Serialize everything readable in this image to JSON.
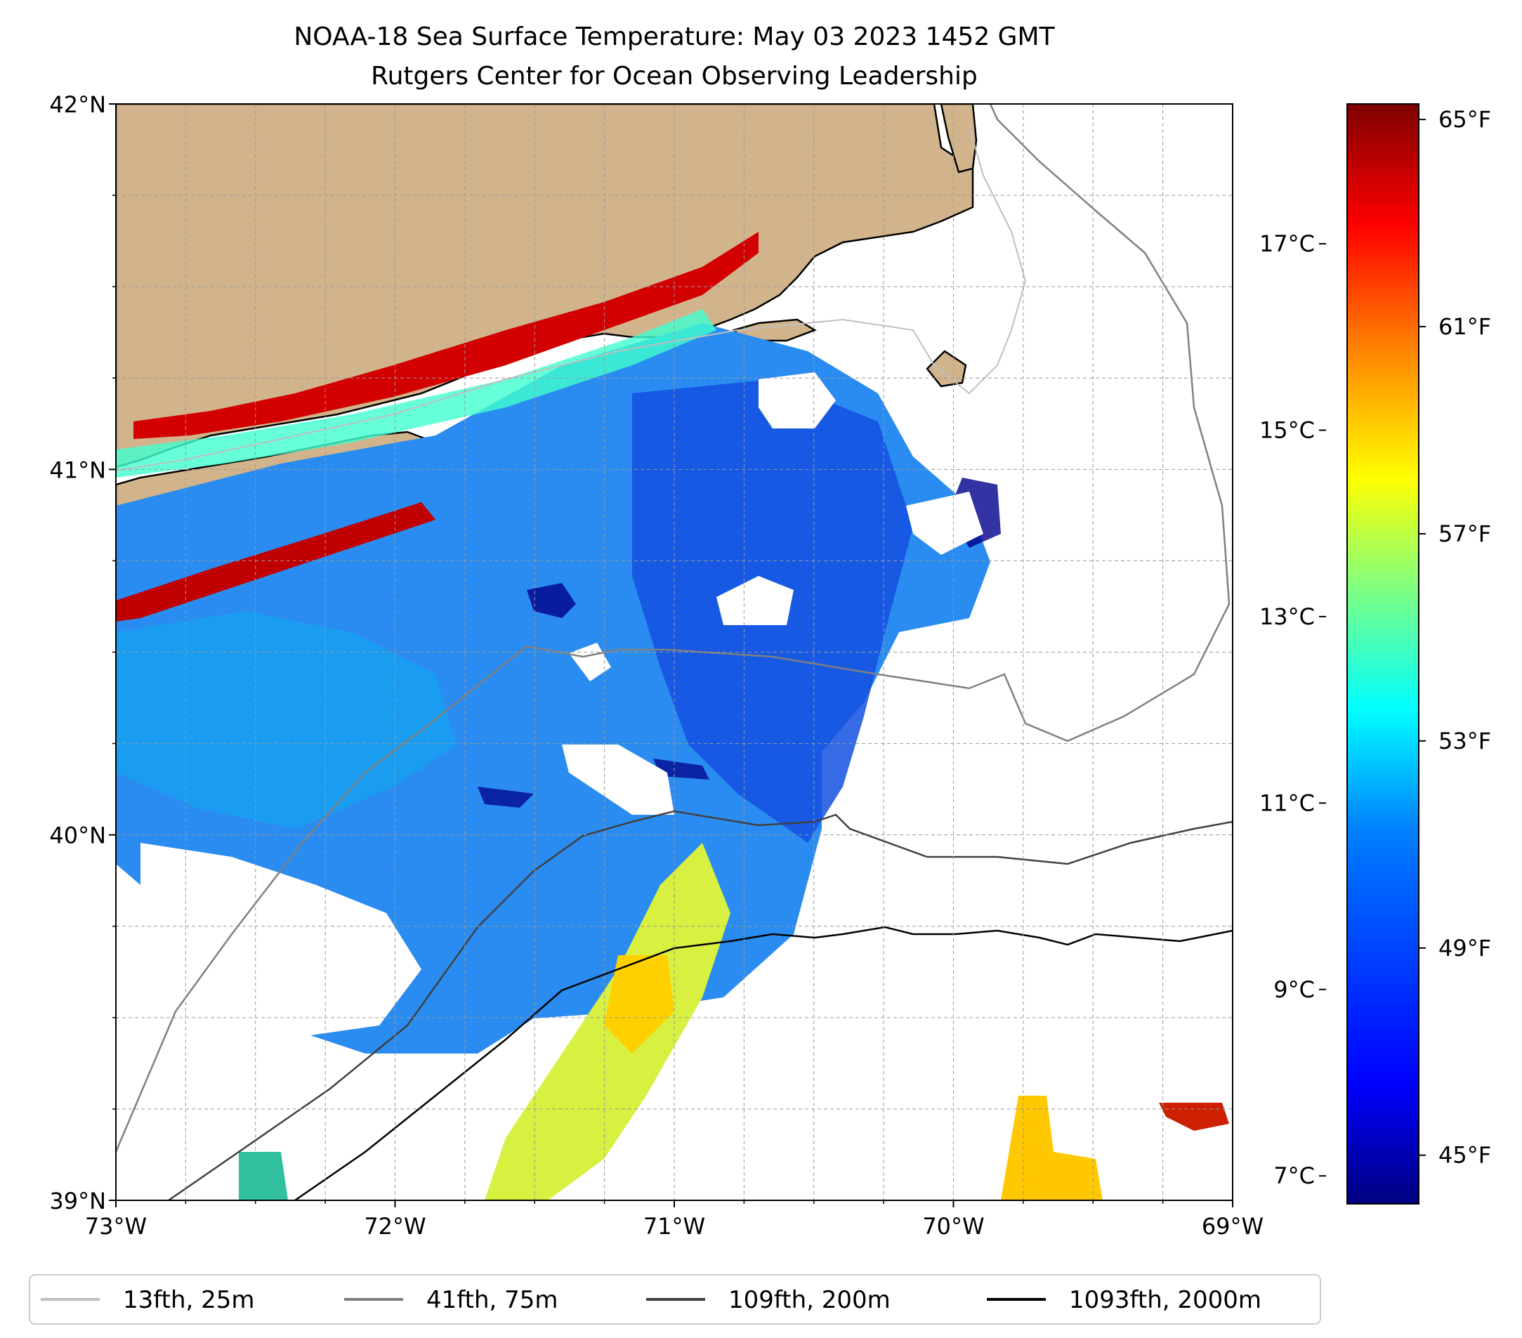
{
  "title": {
    "line1": "NOAA-18 Sea Surface Temperature: May 03 2023 1452 GMT",
    "line2": "Rutgers Center for Ocean Observing Leadership"
  },
  "map": {
    "lat_range": [
      39,
      42
    ],
    "lon_range": [
      -73,
      -69
    ],
    "lat_ticks": [
      {
        "value": 42,
        "label": "42°N"
      },
      {
        "value": 41,
        "label": "41°N"
      },
      {
        "value": 40,
        "label": "40°N"
      },
      {
        "value": 39,
        "label": "39°N"
      }
    ],
    "lon_ticks": [
      {
        "value": -73,
        "label": "73°W"
      },
      {
        "value": -72,
        "label": "72°W"
      },
      {
        "value": -71,
        "label": "71°W"
      },
      {
        "value": -70,
        "label": "70°W"
      },
      {
        "value": -69,
        "label": "69°W"
      }
    ],
    "grid": true
  },
  "colorbar": {
    "colormap": "jet",
    "range_c": [
      6.7,
      18.5
    ],
    "fahrenheit_ticks": [
      {
        "value": 45,
        "label": "45°F"
      },
      {
        "value": 49,
        "label": "49°F"
      },
      {
        "value": 53,
        "label": "53°F"
      },
      {
        "value": 57,
        "label": "57°F"
      },
      {
        "value": 61,
        "label": "61°F"
      },
      {
        "value": 65,
        "label": "65°F"
      }
    ],
    "celsius_ticks": [
      {
        "value": 7,
        "label": "7°C"
      },
      {
        "value": 9,
        "label": "9°C"
      },
      {
        "value": 11,
        "label": "11°C"
      },
      {
        "value": 13,
        "label": "13°C"
      },
      {
        "value": 15,
        "label": "15°C"
      },
      {
        "value": 17,
        "label": "17°C"
      }
    ],
    "colors": [
      "#00007f",
      "#0000ff",
      "#0080ff",
      "#00ffff",
      "#80ff80",
      "#ffff00",
      "#ff8000",
      "#ff0000",
      "#7f0000"
    ]
  },
  "legend": {
    "items": [
      {
        "label": "13fth, 25m",
        "color": "#bfbfbf"
      },
      {
        "label": "41fth, 75m",
        "color": "#808080"
      },
      {
        "label": "109fth, 200m",
        "color": "#404040"
      },
      {
        "label": "1093fth, 2000m",
        "color": "#000000"
      }
    ]
  },
  "colors": {
    "land": "#d2b48c",
    "no_data": "#ffffff"
  }
}
